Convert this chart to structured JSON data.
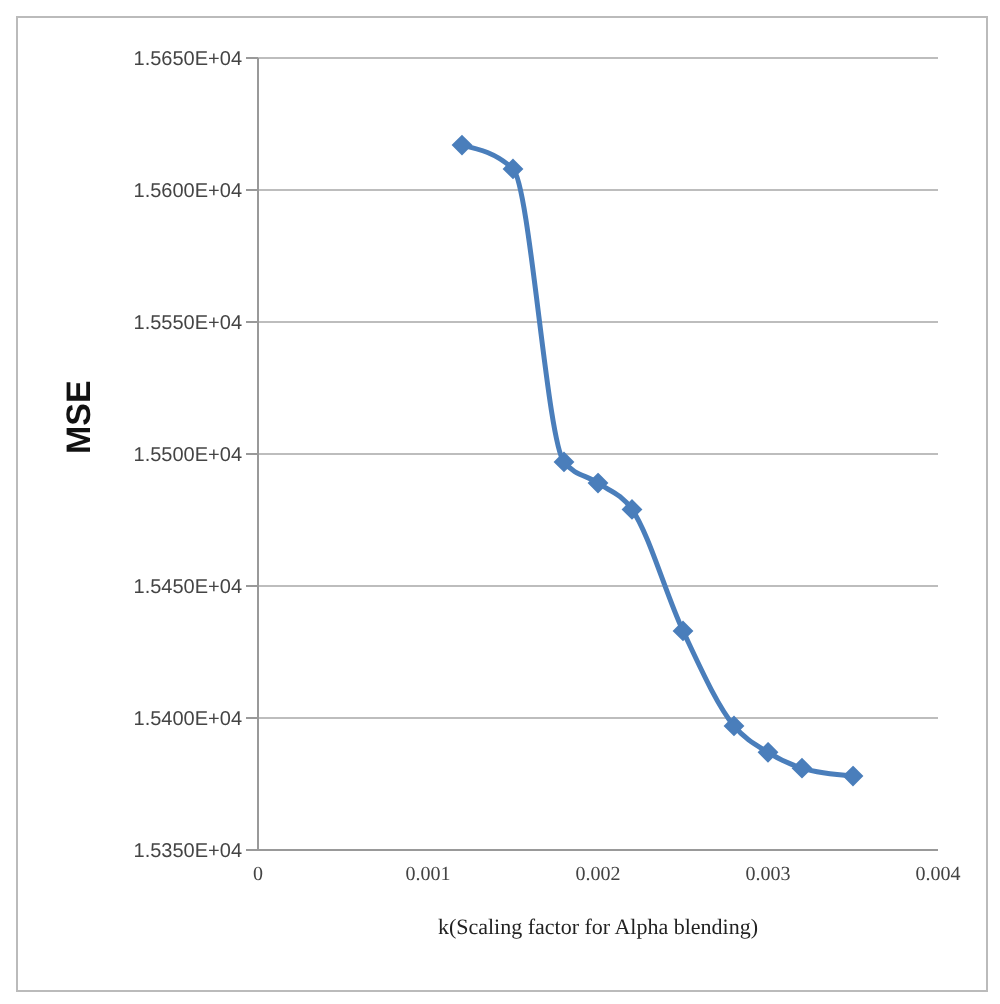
{
  "chart_data": {
    "type": "line",
    "xlabel": "k(Scaling factor for Alpha blending)",
    "ylabel": "MSE",
    "x": [
      0.0012,
      0.0015,
      0.0018,
      0.002,
      0.0022,
      0.0025,
      0.0028,
      0.003,
      0.0032,
      0.0035
    ],
    "series": [
      {
        "color": "#4a7ebb",
        "values": [
          15617,
          15608,
          15497,
          15489,
          15479,
          15433,
          15397,
          15387,
          15381,
          15378
        ]
      }
    ],
    "xlim": [
      0,
      0.004
    ],
    "xticks": [
      0,
      0.001,
      0.002,
      0.003,
      0.004
    ],
    "ylim": [
      15350,
      15650
    ],
    "yticks": [
      {
        "value": 15350,
        "label": "1.5350E+04"
      },
      {
        "value": 15400,
        "label": "1.5400E+04"
      },
      {
        "value": 15450,
        "label": "1.5450E+04"
      },
      {
        "value": 15500,
        "label": "1.5500E+04"
      },
      {
        "value": 15550,
        "label": "1.5550E+04"
      },
      {
        "value": 15600,
        "label": "1.5600E+04"
      },
      {
        "value": 15650,
        "label": "1.5650E+04"
      }
    ],
    "grid": "y",
    "marker": "diamond",
    "line_style": "solid",
    "legend": false
  }
}
